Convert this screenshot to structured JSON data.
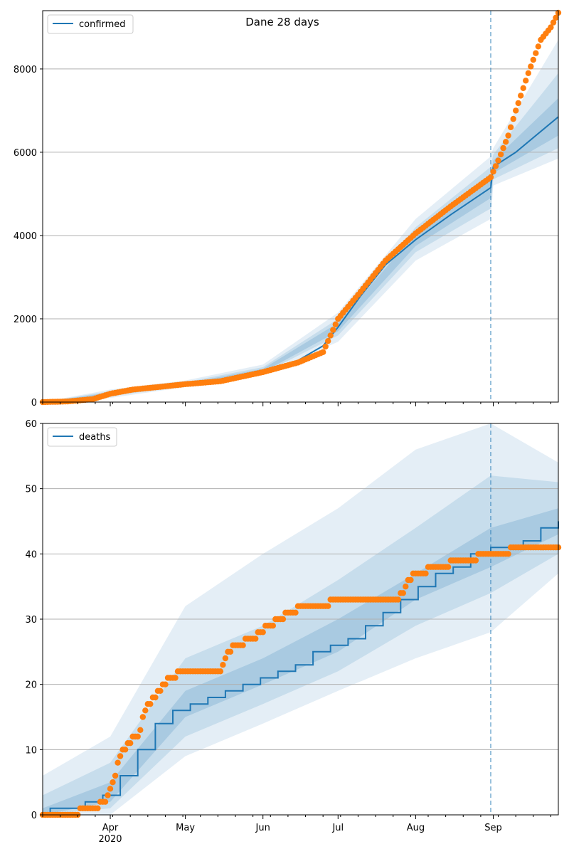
{
  "chart_data": [
    {
      "type": "scatter",
      "title": "Dane 28 days",
      "xlabel": "",
      "ylabel": "",
      "x_ticks": [
        "Apr\n2020",
        "May",
        "Jun",
        "Jul",
        "Aug",
        "Sep"
      ],
      "x_tick_dates": [
        "2020-04-01",
        "2020-05-01",
        "2020-06-01",
        "2020-07-01",
        "2020-08-01",
        "2020-09-01"
      ],
      "xlim": [
        "2020-03-05",
        "2020-09-27"
      ],
      "ylim": [
        0,
        9400
      ],
      "y_ticks": [
        0,
        2000,
        4000,
        6000,
        8000
      ],
      "grid": "horizontal",
      "legend": {
        "placement": "top-left",
        "entries": [
          "confirmed"
        ]
      },
      "forecast_start": "2020-08-31",
      "colors": {
        "model": "#1f77b4",
        "observed": "#ff7f0e",
        "band": "#1f77b4",
        "grid": "#b0b0b0"
      },
      "series": [
        {
          "name": "confirmed",
          "kind": "model-median-line",
          "points": [
            [
              "2020-03-05",
              0
            ],
            [
              "2020-03-15",
              10
            ],
            [
              "2020-03-25",
              60
            ],
            [
              "2020-04-01",
              200
            ],
            [
              "2020-04-10",
              290
            ],
            [
              "2020-04-20",
              360
            ],
            [
              "2020-05-01",
              430
            ],
            [
              "2020-05-15",
              500
            ],
            [
              "2020-06-01",
              760
            ],
            [
              "2020-06-15",
              1000
            ],
            [
              "2020-06-25",
              1350
            ],
            [
              "2020-07-01",
              1800
            ],
            [
              "2020-07-10",
              2550
            ],
            [
              "2020-07-20",
              3300
            ],
            [
              "2020-08-01",
              3900
            ],
            [
              "2020-08-15",
              4500
            ],
            [
              "2020-08-31",
              5150
            ],
            [
              "2020-09-01",
              5650
            ],
            [
              "2020-09-10",
              6000
            ],
            [
              "2020-09-27",
              6850
            ]
          ]
        },
        {
          "kind": "observed-points",
          "points": [
            [
              "2020-03-05",
              0
            ],
            [
              "2020-03-15",
              15
            ],
            [
              "2020-03-25",
              70
            ],
            [
              "2020-04-01",
              200
            ],
            [
              "2020-04-10",
              300
            ],
            [
              "2020-04-20",
              360
            ],
            [
              "2020-05-01",
              430
            ],
            [
              "2020-05-15",
              500
            ],
            [
              "2020-06-01",
              720
            ],
            [
              "2020-06-15",
              950
            ],
            [
              "2020-06-25",
              1200
            ],
            [
              "2020-07-01",
              2000
            ],
            [
              "2020-07-10",
              2650
            ],
            [
              "2020-07-20",
              3400
            ],
            [
              "2020-08-01",
              4050
            ],
            [
              "2020-08-15",
              4700
            ],
            [
              "2020-08-31",
              5400
            ],
            [
              "2020-09-03",
              5800
            ],
            [
              "2020-09-07",
              6400
            ],
            [
              "2020-09-10",
              7000
            ],
            [
              "2020-09-15",
              7900
            ],
            [
              "2020-09-20",
              8700
            ],
            [
              "2020-09-24",
              9000
            ],
            [
              "2020-09-27",
              9350
            ]
          ]
        }
      ],
      "bands": [
        {
          "level": "inner",
          "lower": [
            [
              "2020-03-05",
              0
            ],
            [
              "2020-04-01",
              170
            ],
            [
              "2020-05-01",
              410
            ],
            [
              "2020-06-01",
              720
            ],
            [
              "2020-07-01",
              1700
            ],
            [
              "2020-08-01",
              3750
            ],
            [
              "2020-08-31",
              4900
            ],
            [
              "2020-09-01",
              5500
            ],
            [
              "2020-09-27",
              6400
            ]
          ],
          "upper": [
            [
              "2020-03-05",
              0
            ],
            [
              "2020-04-01",
              230
            ],
            [
              "2020-05-01",
              450
            ],
            [
              "2020-06-01",
              800
            ],
            [
              "2020-07-01",
              1900
            ],
            [
              "2020-08-01",
              4050
            ],
            [
              "2020-08-31",
              5400
            ],
            [
              "2020-09-01",
              5800
            ],
            [
              "2020-09-27",
              7300
            ]
          ]
        },
        {
          "level": "middle",
          "lower": [
            [
              "2020-03-05",
              0
            ],
            [
              "2020-04-01",
              140
            ],
            [
              "2020-05-01",
              390
            ],
            [
              "2020-06-01",
              690
            ],
            [
              "2020-07-01",
              1600
            ],
            [
              "2020-08-01",
              3600
            ],
            [
              "2020-08-31",
              4650
            ],
            [
              "2020-09-01",
              5350
            ],
            [
              "2020-09-27",
              6100
            ]
          ],
          "upper": [
            [
              "2020-03-05",
              0
            ],
            [
              "2020-04-01",
              260
            ],
            [
              "2020-05-01",
              480
            ],
            [
              "2020-06-01",
              840
            ],
            [
              "2020-07-01",
              2000
            ],
            [
              "2020-08-01",
              4200
            ],
            [
              "2020-08-31",
              5650
            ],
            [
              "2020-09-01",
              5950
            ],
            [
              "2020-09-27",
              7900
            ]
          ]
        },
        {
          "level": "outer",
          "lower": [
            [
              "2020-03-05",
              0
            ],
            [
              "2020-04-01",
              100
            ],
            [
              "2020-05-01",
              360
            ],
            [
              "2020-06-01",
              650
            ],
            [
              "2020-07-01",
              1450
            ],
            [
              "2020-08-01",
              3400
            ],
            [
              "2020-08-31",
              4400
            ],
            [
              "2020-09-01",
              5200
            ],
            [
              "2020-09-27",
              5850
            ]
          ],
          "upper": [
            [
              "2020-03-05",
              0
            ],
            [
              "2020-04-01",
              300
            ],
            [
              "2020-05-01",
              520
            ],
            [
              "2020-06-01",
              900
            ],
            [
              "2020-07-01",
              2150
            ],
            [
              "2020-08-01",
              4400
            ],
            [
              "2020-08-31",
              5900
            ],
            [
              "2020-09-01",
              6100
            ],
            [
              "2020-09-27",
              8700
            ]
          ]
        }
      ]
    },
    {
      "type": "scatter",
      "title": "",
      "xlabel": "",
      "ylabel": "",
      "x_ticks": [
        "Apr\n2020",
        "May",
        "Jun",
        "Jul",
        "Aug",
        "Sep"
      ],
      "x_tick_dates": [
        "2020-04-01",
        "2020-05-01",
        "2020-06-01",
        "2020-07-01",
        "2020-08-01",
        "2020-09-01"
      ],
      "xlim": [
        "2020-03-05",
        "2020-09-27"
      ],
      "ylim": [
        0,
        60
      ],
      "y_ticks": [
        0,
        10,
        20,
        30,
        40,
        50,
        60
      ],
      "grid": "horizontal",
      "legend": {
        "placement": "top-left",
        "entries": [
          "deaths"
        ]
      },
      "forecast_start": "2020-08-31",
      "colors": {
        "model": "#1f77b4",
        "observed": "#ff7f0e",
        "band": "#1f77b4",
        "grid": "#b0b0b0"
      },
      "series": [
        {
          "name": "deaths",
          "kind": "model-median-step",
          "points": [
            [
              "2020-03-05",
              0
            ],
            [
              "2020-03-08",
              1
            ],
            [
              "2020-03-22",
              2
            ],
            [
              "2020-03-29",
              3
            ],
            [
              "2020-04-05",
              6
            ],
            [
              "2020-04-12",
              10
            ],
            [
              "2020-04-19",
              14
            ],
            [
              "2020-04-26",
              16
            ],
            [
              "2020-05-03",
              17
            ],
            [
              "2020-05-10",
              18
            ],
            [
              "2020-05-17",
              19
            ],
            [
              "2020-05-24",
              20
            ],
            [
              "2020-05-31",
              21
            ],
            [
              "2020-06-07",
              22
            ],
            [
              "2020-06-14",
              23
            ],
            [
              "2020-06-21",
              25
            ],
            [
              "2020-06-28",
              26
            ],
            [
              "2020-07-05",
              27
            ],
            [
              "2020-07-12",
              29
            ],
            [
              "2020-07-19",
              31
            ],
            [
              "2020-07-26",
              33
            ],
            [
              "2020-08-02",
              35
            ],
            [
              "2020-08-09",
              37
            ],
            [
              "2020-08-16",
              38
            ],
            [
              "2020-08-23",
              40
            ],
            [
              "2020-08-31",
              41
            ],
            [
              "2020-09-06",
              41
            ],
            [
              "2020-09-13",
              42
            ],
            [
              "2020-09-20",
              44
            ],
            [
              "2020-09-27",
              45
            ]
          ]
        },
        {
          "kind": "observed-points",
          "points": [
            [
              "2020-03-05",
              0
            ],
            [
              "2020-03-15",
              0
            ],
            [
              "2020-03-25",
              1
            ],
            [
              "2020-03-30",
              2
            ],
            [
              "2020-04-02",
              5
            ],
            [
              "2020-04-05",
              9
            ],
            [
              "2020-04-08",
              11
            ],
            [
              "2020-04-12",
              12
            ],
            [
              "2020-04-15",
              16
            ],
            [
              "2020-04-20",
              19
            ],
            [
              "2020-04-25",
              21
            ],
            [
              "2020-05-01",
              22
            ],
            [
              "2020-05-15",
              22
            ],
            [
              "2020-05-18",
              25
            ],
            [
              "2020-05-22",
              26
            ],
            [
              "2020-05-28",
              27
            ],
            [
              "2020-06-03",
              29
            ],
            [
              "2020-06-08",
              30
            ],
            [
              "2020-06-12",
              31
            ],
            [
              "2020-06-17",
              32
            ],
            [
              "2020-07-08",
              33
            ],
            [
              "2020-07-25",
              33
            ],
            [
              "2020-07-28",
              35
            ],
            [
              "2020-08-01",
              37
            ],
            [
              "2020-08-10",
              38
            ],
            [
              "2020-08-20",
              39
            ],
            [
              "2020-08-31",
              40
            ],
            [
              "2020-09-05",
              40
            ],
            [
              "2020-09-10",
              41
            ],
            [
              "2020-09-27",
              41
            ]
          ]
        }
      ],
      "bands": [
        {
          "level": "inner",
          "lower": [
            [
              "2020-03-05",
              0
            ],
            [
              "2020-04-01",
              2
            ],
            [
              "2020-05-01",
              15
            ],
            [
              "2020-06-01",
              20
            ],
            [
              "2020-07-01",
              25
            ],
            [
              "2020-08-01",
              33
            ],
            [
              "2020-08-31",
              38
            ],
            [
              "2020-09-27",
              43
            ]
          ],
          "upper": [
            [
              "2020-03-05",
              1
            ],
            [
              "2020-04-01",
              5
            ],
            [
              "2020-05-01",
              19
            ],
            [
              "2020-06-01",
              24
            ],
            [
              "2020-07-01",
              30
            ],
            [
              "2020-08-01",
              37
            ],
            [
              "2020-08-31",
              44
            ],
            [
              "2020-09-27",
              47
            ]
          ]
        },
        {
          "level": "middle",
          "lower": [
            [
              "2020-03-05",
              0
            ],
            [
              "2020-04-01",
              1
            ],
            [
              "2020-05-01",
              12
            ],
            [
              "2020-06-01",
              17
            ],
            [
              "2020-07-01",
              22
            ],
            [
              "2020-08-01",
              29
            ],
            [
              "2020-08-31",
              34
            ],
            [
              "2020-09-27",
              40
            ]
          ],
          "upper": [
            [
              "2020-03-05",
              3
            ],
            [
              "2020-04-01",
              8
            ],
            [
              "2020-05-01",
              24
            ],
            [
              "2020-06-01",
              29
            ],
            [
              "2020-07-01",
              36
            ],
            [
              "2020-08-01",
              44
            ],
            [
              "2020-08-31",
              52
            ],
            [
              "2020-09-27",
              51
            ]
          ]
        },
        {
          "level": "outer",
          "lower": [
            [
              "2020-03-05",
              0
            ],
            [
              "2020-04-01",
              0
            ],
            [
              "2020-05-01",
              9
            ],
            [
              "2020-06-01",
              14
            ],
            [
              "2020-07-01",
              19
            ],
            [
              "2020-08-01",
              24
            ],
            [
              "2020-08-31",
              28
            ],
            [
              "2020-09-27",
              37
            ]
          ],
          "upper": [
            [
              "2020-03-05",
              6
            ],
            [
              "2020-04-01",
              12
            ],
            [
              "2020-05-01",
              32
            ],
            [
              "2020-06-01",
              40
            ],
            [
              "2020-07-01",
              47
            ],
            [
              "2020-08-01",
              56
            ],
            [
              "2020-08-31",
              60
            ],
            [
              "2020-09-27",
              54
            ]
          ]
        }
      ]
    }
  ]
}
